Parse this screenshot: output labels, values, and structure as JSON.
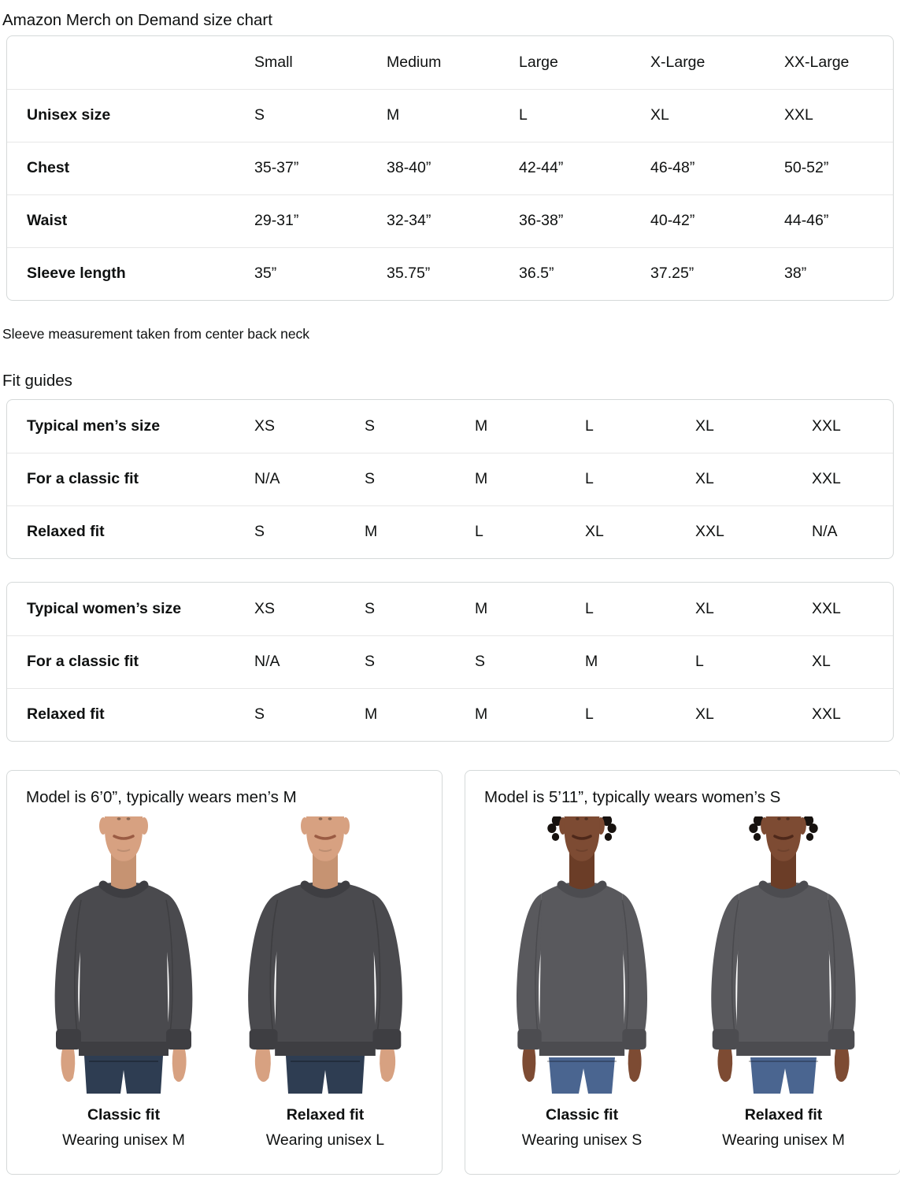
{
  "page": {
    "title": "Amazon Merch on Demand size chart",
    "note": "Sleeve measurement taken from center back neck",
    "fit_guides_heading": "Fit guides"
  },
  "size_chart": {
    "columns": [
      "",
      "Small",
      "Medium",
      "Large",
      "X-Large",
      "XX-Large"
    ],
    "rows": [
      {
        "label": "Unisex size",
        "values": [
          "S",
          "M",
          "L",
          "XL",
          "XXL"
        ]
      },
      {
        "label": "Chest",
        "values": [
          "35-37”",
          "38-40”",
          "42-44”",
          "46-48”",
          "50-52”"
        ]
      },
      {
        "label": "Waist",
        "values": [
          "29-31”",
          "32-34”",
          "36-38”",
          "40-42”",
          "44-46”"
        ]
      },
      {
        "label": "Sleeve length",
        "values": [
          "35”",
          "35.75”",
          "36.5”",
          "37.25”",
          "38”"
        ]
      }
    ]
  },
  "fit_guide_men": {
    "rows": [
      {
        "label": "Typical men’s size",
        "values": [
          "XS",
          "S",
          "M",
          "L",
          "XL",
          "XXL"
        ]
      },
      {
        "label": "For a classic fit",
        "values": [
          "N/A",
          "S",
          "M",
          "L",
          "XL",
          "XXL"
        ]
      },
      {
        "label": "Relaxed fit",
        "values": [
          "S",
          "M",
          "L",
          "XL",
          "XXL",
          "N/A"
        ]
      }
    ]
  },
  "fit_guide_women": {
    "rows": [
      {
        "label": "Typical women’s size",
        "values": [
          "XS",
          "S",
          "M",
          "L",
          "XL",
          "XXL"
        ]
      },
      {
        "label": "For a classic fit",
        "values": [
          "N/A",
          "S",
          "S",
          "M",
          "L",
          "XL"
        ]
      },
      {
        "label": "Relaxed fit",
        "values": [
          "S",
          "M",
          "M",
          "L",
          "XL",
          "XXL"
        ]
      }
    ]
  },
  "model_cards": [
    {
      "title": "Model is 6’0”, typically wears men’s M",
      "model": "male",
      "figures": [
        {
          "variant": "classic",
          "fit_label": "Classic fit",
          "wearing_label": "Wearing unisex M"
        },
        {
          "variant": "relaxed",
          "fit_label": "Relaxed fit",
          "wearing_label": "Wearing unisex L"
        }
      ]
    },
    {
      "title": "Model is 5’11”, typically wears women’s S",
      "model": "female",
      "figures": [
        {
          "variant": "classic",
          "fit_label": "Classic fit",
          "wearing_label": "Wearing unisex S"
        },
        {
          "variant": "relaxed",
          "fit_label": "Relaxed fit",
          "wearing_label": "Wearing unisex M"
        }
      ]
    }
  ],
  "colors": {
    "text": "#0F1111",
    "border": "#D5D9D9",
    "divider": "#E7E7E7",
    "sweatshirt_men": "#4A4A4E",
    "sweatshirt_women": "#59595D",
    "jeans_men": "#2E3D52",
    "jeans_women": "#4A6590",
    "skin_men": "#D7A181",
    "skin_women": "#7D4B33"
  }
}
